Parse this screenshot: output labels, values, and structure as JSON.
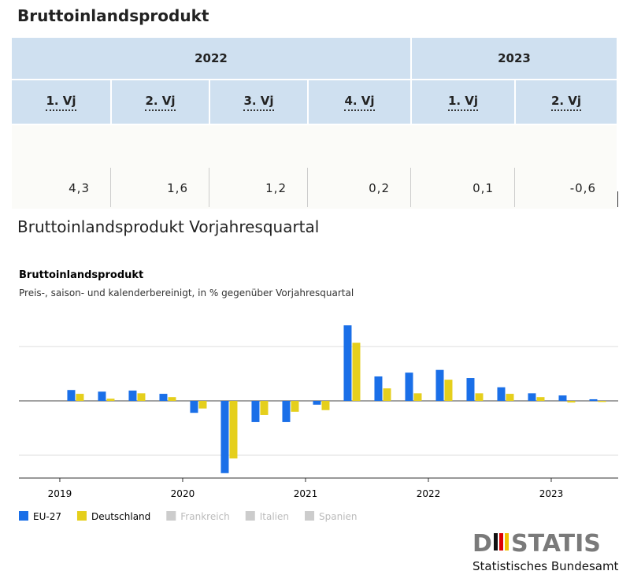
{
  "header": {
    "title": "Bruttoinlandsprodukt"
  },
  "table": {
    "years": [
      {
        "label": "2022",
        "span": 4
      },
      {
        "label": "2023",
        "span": 2
      }
    ],
    "quarters": [
      "1. Vj",
      "2. Vj",
      "3. Vj",
      "4. Vj",
      "1. Vj",
      "2. Vj"
    ],
    "values": [
      "4,3",
      "1,6",
      "1,2",
      "0,2",
      "0,1",
      "-0,6"
    ]
  },
  "section_title": "Bruttoinlandsprodukt Vorjahresquartal",
  "chart_data": {
    "type": "bar",
    "title": "Bruttoinlandsprodukt",
    "subtitle": "Preis-, saison- und kalenderbereinigt, in % gegenüber Vorjahresquartal",
    "x": [
      2019.125,
      2019.375,
      2019.625,
      2019.875,
      2020.125,
      2020.375,
      2020.625,
      2020.875,
      2021.125,
      2021.375,
      2021.625,
      2021.875,
      2022.125,
      2022.375,
      2022.625,
      2022.875,
      2023.125,
      2023.375
    ],
    "xlim": [
      2018.667,
      2023.545
    ],
    "xticks": [
      2019,
      2020,
      2021,
      2022,
      2023
    ],
    "ylim": [
      -14.2,
      15.8
    ],
    "yticks": [
      -10,
      0,
      10
    ],
    "grid": true,
    "series": [
      {
        "name": "EU-27",
        "color": "#1a6fe8",
        "values": [
          2.0,
          1.7,
          1.9,
          1.3,
          -2.2,
          -13.3,
          -3.9,
          -3.9,
          -0.7,
          13.9,
          4.5,
          5.2,
          5.7,
          4.2,
          2.5,
          1.4,
          1.0,
          0.3
        ]
      },
      {
        "name": "Deutschland",
        "color": "#e5cf1c",
        "values": [
          1.3,
          0.4,
          1.4,
          0.7,
          -1.4,
          -10.6,
          -2.6,
          -2.0,
          -1.7,
          10.7,
          2.3,
          1.4,
          3.9,
          1.4,
          1.3,
          0.7,
          -0.3,
          -0.2
        ]
      }
    ],
    "inactive_legend": [
      "Frankreich",
      "Italien",
      "Spanien"
    ]
  },
  "logo": {
    "start": "D",
    "end": "STATIS",
    "subtitle": "Statistisches Bundesamt"
  }
}
